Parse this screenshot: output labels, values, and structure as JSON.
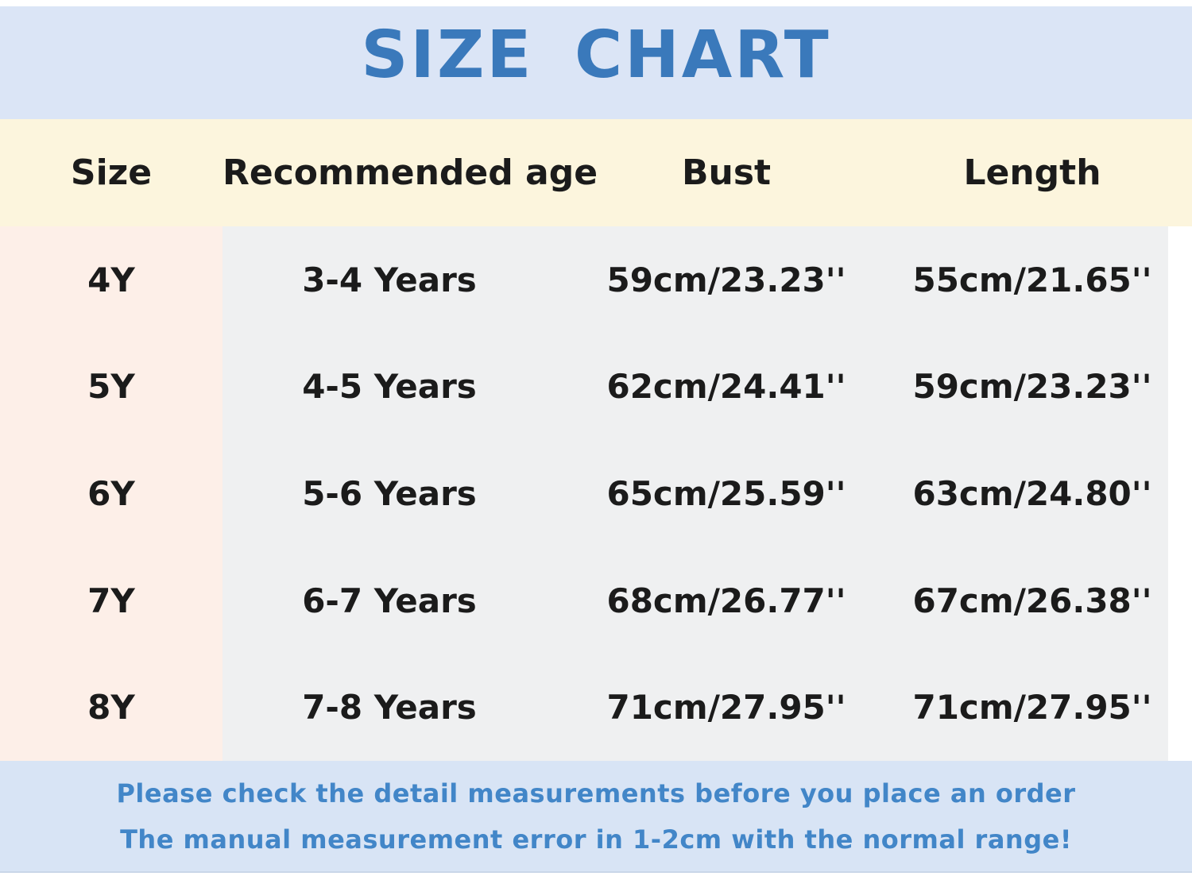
{
  "chart_data": {
    "type": "table",
    "title": "SIZE CHART",
    "columns": [
      "Size",
      "Recommended age",
      "Bust",
      "Length"
    ],
    "rows": [
      [
        "4Y",
        "3-4 Years",
        "59cm/23.23''",
        "55cm/21.65''"
      ],
      [
        "5Y",
        "4-5 Years",
        "62cm/24.41''",
        "59cm/23.23''"
      ],
      [
        "6Y",
        "5-6 Years",
        "65cm/25.59''",
        "63cm/24.80''"
      ],
      [
        "7Y",
        "6-7 Years",
        "68cm/26.77''",
        "67cm/26.38''"
      ],
      [
        "8Y",
        "7-8 Years",
        "71cm/27.95''",
        "71cm/27.95''"
      ]
    ],
    "annotations": {
      "line1": "Please check the detail measurements before you place an order",
      "line2": "The manual measurement error in 1-2cm with the normal range!"
    },
    "layout_hints": {
      "header_position": "top",
      "size_column_highlight": "left"
    }
  },
  "colors": {
    "header_band": "#dbe5f6",
    "title_text": "#3a79bb",
    "column_band": "#fcf5dd",
    "size_column": "#fdefe8",
    "body_gray": "#eff0f1",
    "footer_band": "#d8e4f5",
    "footer_text": "#4286c8",
    "table_text": "#1b1b1b"
  }
}
